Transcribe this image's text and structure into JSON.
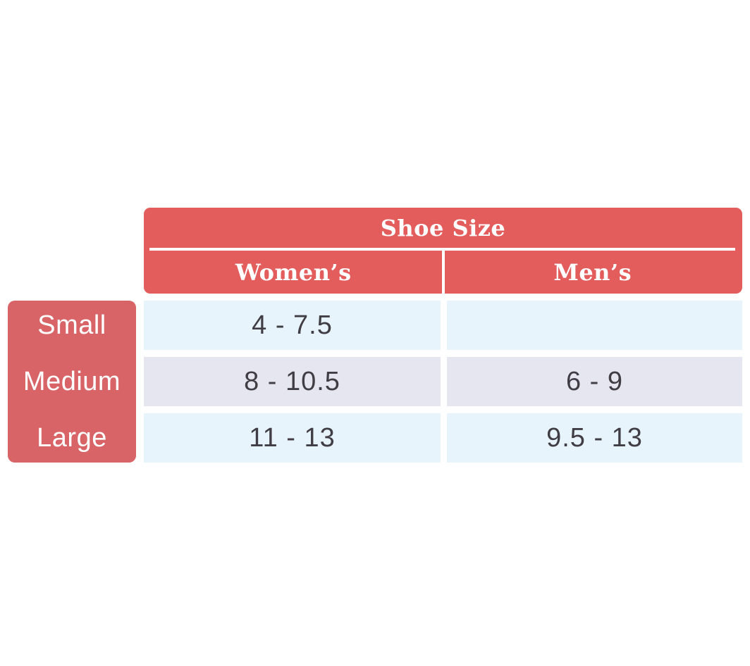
{
  "colors": {
    "header-red": "#e45d5d",
    "sidebar-red": "#d96467",
    "row-blue": "#e7f4fc",
    "row-lavender": "#e6e6f0",
    "divider-white": "#ffffff",
    "value-text": "#413d44",
    "background": "#ffffff"
  },
  "chart_data": {
    "type": "table",
    "title": "Shoe Size",
    "columns": [
      "Women’s",
      "Men’s"
    ],
    "row_labels": [
      "Small",
      "Medium",
      "Large"
    ],
    "cells": [
      [
        "4 - 7.5",
        ""
      ],
      [
        "8 - 10.5",
        "6 - 9"
      ],
      [
        "11 - 13",
        "9.5 - 13"
      ]
    ],
    "layout": {
      "legend_position": "none",
      "row_shading": [
        "blue",
        "lavender",
        "blue"
      ]
    }
  }
}
